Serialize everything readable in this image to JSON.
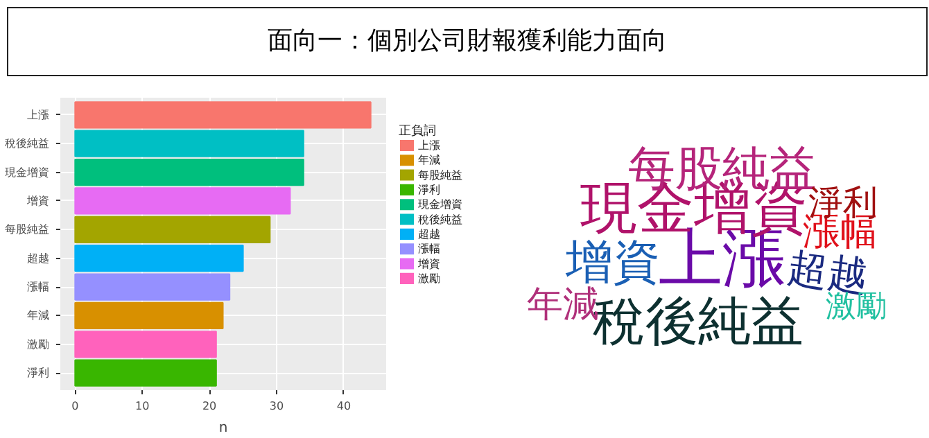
{
  "chart_data": [
    {
      "type": "bar",
      "title": "面向一：個別公司財報獲利能力面向",
      "orientation": "horizontal",
      "xlabel": "n",
      "legend_title": "正負詞",
      "legend": "right",
      "grid": true,
      "categories": [
        "上漲",
        "稅後純益",
        "現金增資",
        "增資",
        "每股純益",
        "超越",
        "漲幅",
        "年減",
        "激勵",
        "淨利"
      ],
      "xlim": [
        -2.2,
        46.3
      ],
      "xticks": [
        0,
        10,
        20,
        30,
        40
      ],
      "series": [
        {
          "name": "上漲",
          "color": "#f8766d",
          "values": [
            44,
            null,
            null,
            null,
            null,
            null,
            null,
            null,
            null,
            null
          ]
        },
        {
          "name": "年減",
          "color": "#d89000",
          "values": [
            null,
            null,
            null,
            null,
            null,
            null,
            null,
            22,
            null,
            null
          ]
        },
        {
          "name": "每股純益",
          "color": "#a3a500",
          "values": [
            null,
            null,
            null,
            null,
            29,
            null,
            null,
            null,
            null,
            null
          ]
        },
        {
          "name": "淨利",
          "color": "#39b600",
          "values": [
            null,
            null,
            null,
            null,
            null,
            null,
            null,
            null,
            null,
            21
          ]
        },
        {
          "name": "現金增資",
          "color": "#00bf7d",
          "values": [
            null,
            null,
            34,
            null,
            null,
            null,
            null,
            null,
            null,
            null
          ]
        },
        {
          "name": "稅後純益",
          "color": "#00bfc4",
          "values": [
            null,
            34,
            null,
            null,
            null,
            null,
            null,
            null,
            null,
            null
          ]
        },
        {
          "name": "超越",
          "color": "#00b0f6",
          "values": [
            null,
            null,
            null,
            null,
            null,
            25,
            null,
            null,
            null,
            null
          ]
        },
        {
          "name": "漲幅",
          "color": "#9590ff",
          "values": [
            null,
            null,
            null,
            null,
            null,
            null,
            23,
            null,
            null,
            null
          ]
        },
        {
          "name": "增資",
          "color": "#e76bf3",
          "values": [
            null,
            null,
            null,
            32,
            null,
            null,
            null,
            null,
            null,
            null
          ]
        },
        {
          "name": "激勵",
          "color": "#ff62bc",
          "values": [
            null,
            null,
            null,
            null,
            null,
            null,
            null,
            null,
            21,
            null
          ]
        }
      ]
    },
    {
      "type": "other",
      "categories": [
        "上漲",
        "稅後純益",
        "現金增資",
        "增資",
        "每股純益",
        "超越",
        "漲幅",
        "年減",
        "激勵",
        "淨利"
      ],
      "colors": [
        "#6a0aa8",
        "#0d3030",
        "#b0126a",
        "#1a5fb4",
        "#b5247a",
        "#1a2a80",
        "#e0101a",
        "#b0307a",
        "#20c0a0",
        "#a01010"
      ]
    }
  ]
}
